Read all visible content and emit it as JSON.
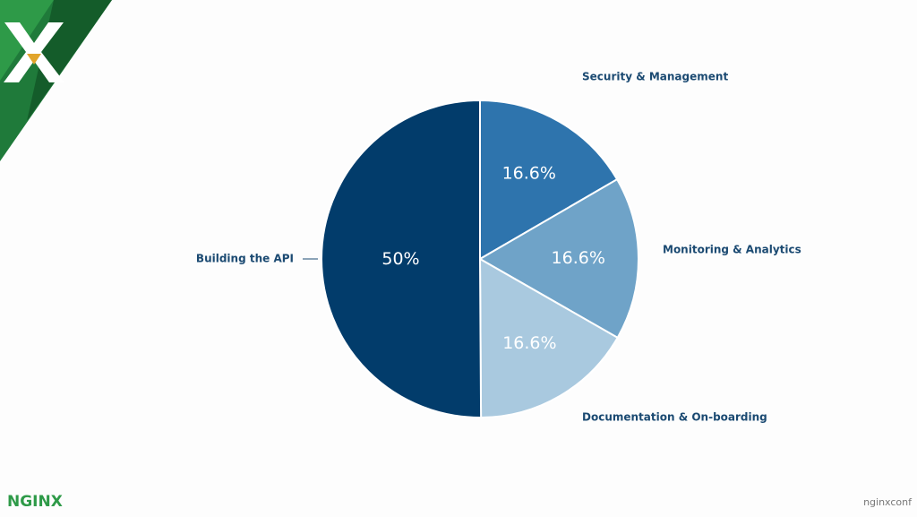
{
  "chart_data": {
    "type": "pie",
    "categories": [
      "Security & Management",
      "Monitoring & Analytics",
      "Documentation & On-boarding",
      "Building the API"
    ],
    "values": [
      16.6,
      16.6,
      16.6,
      50
    ],
    "value_labels": [
      "16.6%",
      "16.6%",
      "16.6%",
      "50%"
    ],
    "colors": [
      "#2e74ad",
      "#6fa3c8",
      "#a9c9df",
      "#023c6b"
    ]
  },
  "branding": {
    "logo": "NGINX",
    "event": "nginxconf"
  }
}
